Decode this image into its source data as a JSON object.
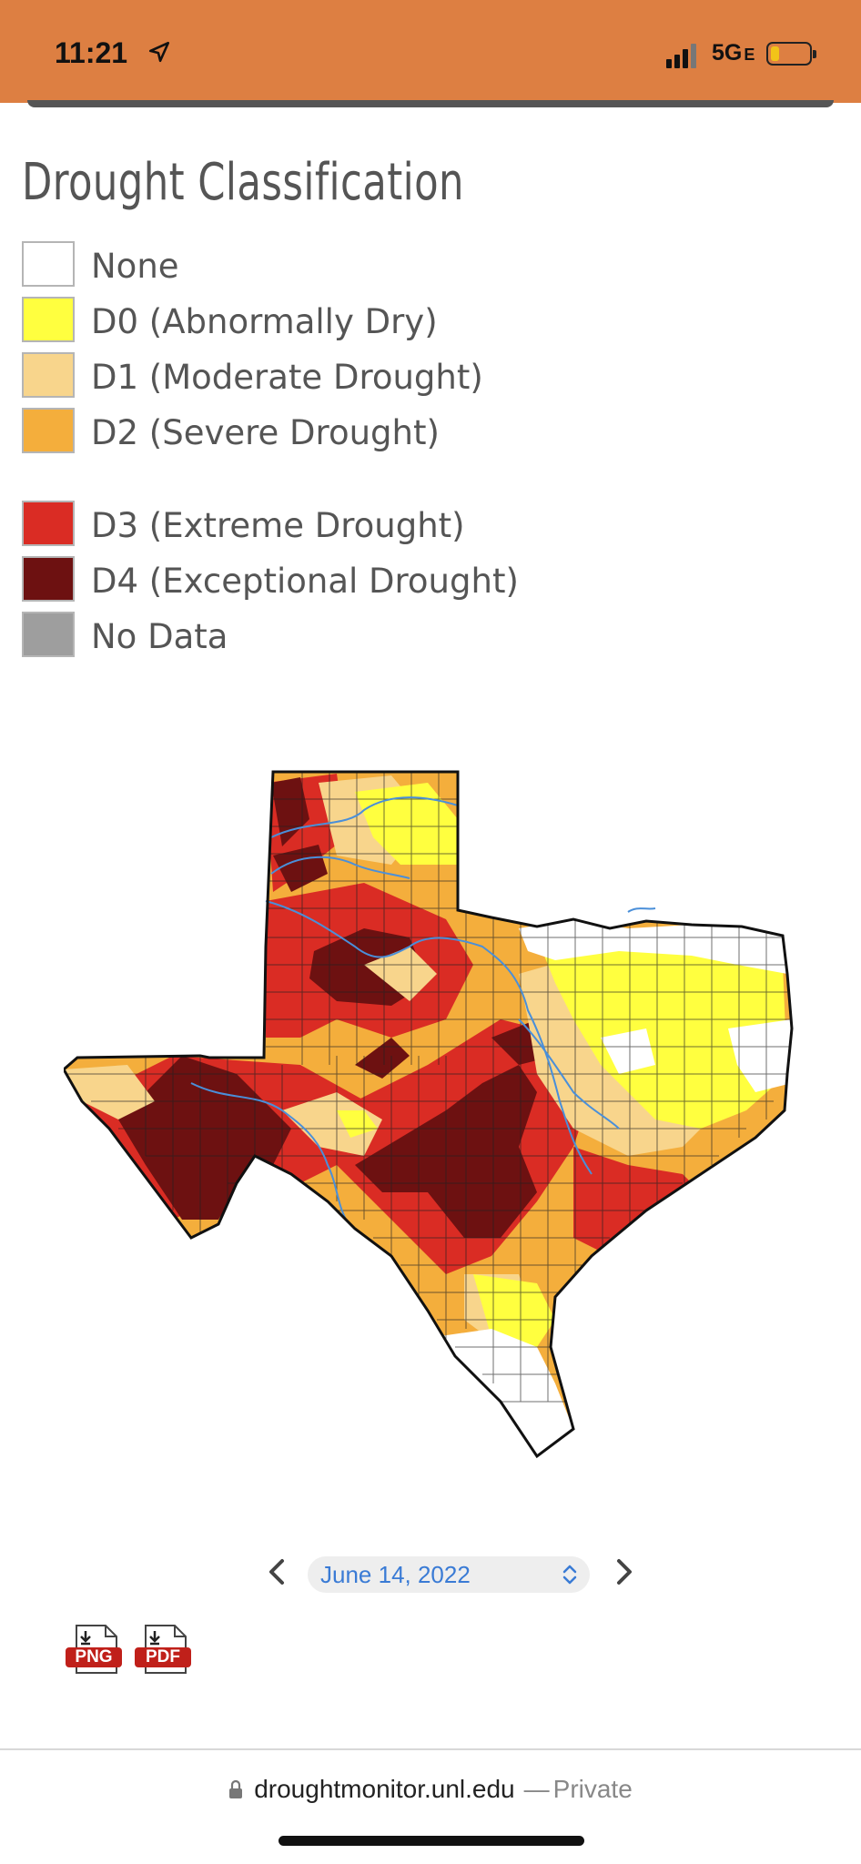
{
  "status_bar": {
    "time": "11:21",
    "network": "5G",
    "network_suffix": "E",
    "accent": "#dd7f42"
  },
  "legend": {
    "title": "Drought Classification",
    "items": [
      {
        "label": "None",
        "color": "#ffffff"
      },
      {
        "label": "D0 (Abnormally Dry)",
        "color": "#ffff3f"
      },
      {
        "label": "D1 (Moderate Drought)",
        "color": "#f8d58c"
      },
      {
        "label": "D2 (Severe Drought)",
        "color": "#f4ae3c"
      },
      {
        "label": "D3 (Extreme Drought)",
        "color": "#da2c24"
      },
      {
        "label": "D4 (Exceptional Drought)",
        "color": "#6d1111"
      },
      {
        "label": "No Data",
        "color": "#9e9e9e"
      }
    ]
  },
  "map": {
    "region": "Texas",
    "rivers_color": "#4a8fd9"
  },
  "date_nav": {
    "selected_date": "June 14, 2022",
    "prev_icon": "chevron-left-icon",
    "next_icon": "chevron-right-icon"
  },
  "downloads": {
    "png_label": "PNG",
    "pdf_label": "PDF"
  },
  "browser": {
    "domain": "droughtmonitor.unl.edu",
    "separator": "—",
    "mode": "Private"
  }
}
